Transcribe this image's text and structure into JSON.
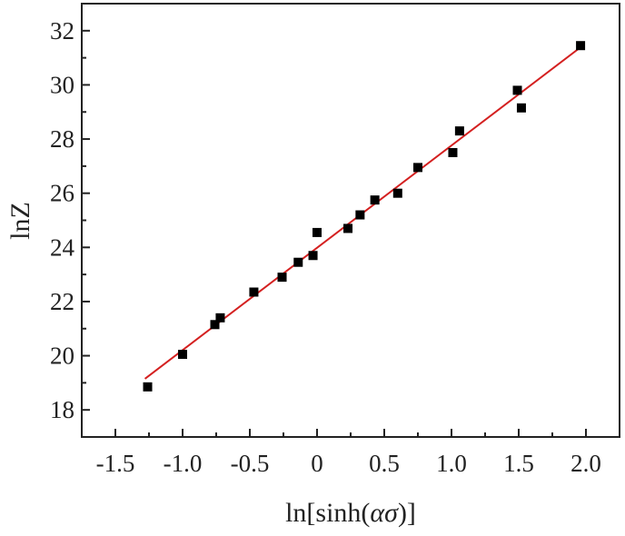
{
  "chart_data": {
    "type": "scatter",
    "title": "",
    "xlabel_parts": [
      "ln[sinh(",
      "ασ",
      ")]"
    ],
    "ylabel": "lnZ",
    "xlim": [
      -1.75,
      2.25
    ],
    "ylim": [
      17.0,
      33.0
    ],
    "x_ticks": [
      -1.5,
      -1.0,
      -0.5,
      0,
      0.5,
      1.0,
      1.5,
      2.0
    ],
    "x_tick_labels": [
      "-1.5",
      "-1.0",
      "-0.5",
      "0",
      "0.5",
      "1.0",
      "1.5",
      "2.0"
    ],
    "y_ticks": [
      18,
      20,
      22,
      24,
      26,
      28,
      30,
      32
    ],
    "y_tick_labels": [
      "18",
      "20",
      "22",
      "24",
      "26",
      "28",
      "30",
      "32"
    ],
    "grid": false,
    "series": [
      {
        "marker": "square",
        "color": "#000000",
        "points": [
          {
            "x": -1.26,
            "y": 18.85
          },
          {
            "x": -1.0,
            "y": 20.05
          },
          {
            "x": -0.76,
            "y": 21.15
          },
          {
            "x": -0.72,
            "y": 21.4
          },
          {
            "x": -0.47,
            "y": 22.35
          },
          {
            "x": -0.26,
            "y": 22.9
          },
          {
            "x": -0.14,
            "y": 23.45
          },
          {
            "x": -0.03,
            "y": 23.7
          },
          {
            "x": 0.0,
            "y": 24.55
          },
          {
            "x": 0.23,
            "y": 24.7
          },
          {
            "x": 0.32,
            "y": 25.2
          },
          {
            "x": 0.43,
            "y": 25.75
          },
          {
            "x": 0.6,
            "y": 26.0
          },
          {
            "x": 0.75,
            "y": 26.95
          },
          {
            "x": 1.01,
            "y": 27.5
          },
          {
            "x": 1.06,
            "y": 28.3
          },
          {
            "x": 1.49,
            "y": 29.8
          },
          {
            "x": 1.52,
            "y": 29.15
          },
          {
            "x": 1.96,
            "y": 31.45
          }
        ]
      }
    ],
    "fit_line": {
      "color": "#d42020",
      "x_start": -1.28,
      "y_start": 19.15,
      "x_end": 1.95,
      "y_end": 31.35
    }
  }
}
